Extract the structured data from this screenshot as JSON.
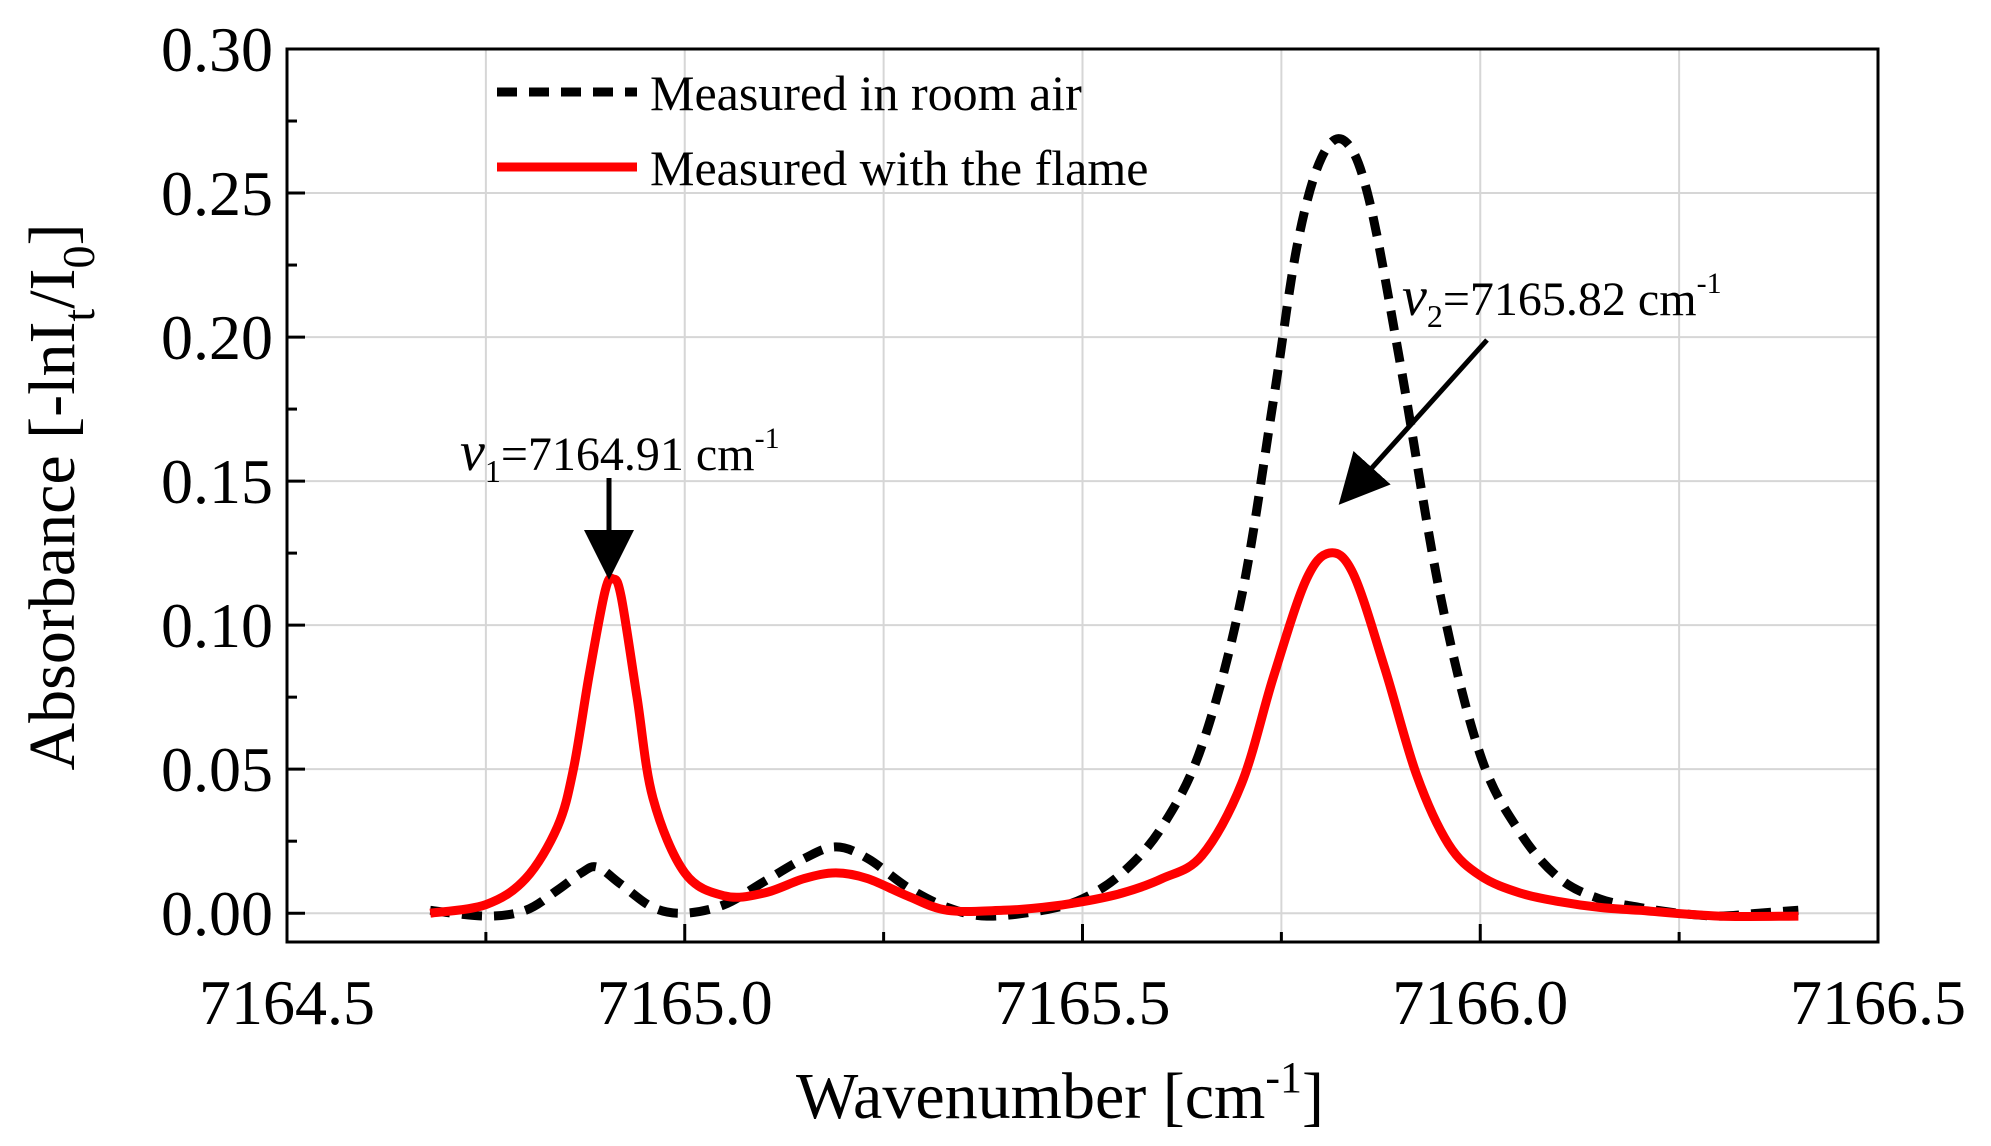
{
  "chart_data": {
    "type": "line",
    "title": "",
    "xlabel": "Wavenumber [cm",
    "xlabel_sup": "-1",
    "xlabel_end": "]",
    "ylabel_parts": [
      "Absorbance [-lnI",
      "t",
      "/I",
      "0",
      "]"
    ],
    "xlim": [
      7164.5,
      7166.5
    ],
    "ylim": [
      -0.01,
      0.3
    ],
    "x_ticks": [
      7164.5,
      7165.0,
      7165.5,
      7166.0,
      7166.5
    ],
    "x_tick_labels": [
      "7164.5",
      "7165.0",
      "7165.5",
      "7166.0",
      "7166.5"
    ],
    "y_ticks": [
      0.0,
      0.05,
      0.1,
      0.15,
      0.2,
      0.25,
      0.3
    ],
    "y_tick_labels": [
      "0.00",
      "0.05",
      "0.10",
      "0.15",
      "0.20",
      "0.25",
      "0.30"
    ],
    "grid": true,
    "legend_position": "top-center",
    "series": [
      {
        "name": "Measured in room air",
        "color": "#000000",
        "style": "dashed",
        "x": [
          7164.68,
          7164.75,
          7164.8,
          7164.84,
          7164.87,
          7164.89,
          7164.92,
          7164.96,
          7165.0,
          7165.05,
          7165.1,
          7165.15,
          7165.19,
          7165.23,
          7165.28,
          7165.33,
          7165.38,
          7165.45,
          7165.5,
          7165.55,
          7165.6,
          7165.65,
          7165.7,
          7165.74,
          7165.77,
          7165.8,
          7165.83,
          7165.86,
          7165.9,
          7165.95,
          7166.0,
          7166.05,
          7166.1,
          7166.15,
          7166.2,
          7166.25,
          7166.3,
          7166.35,
          7166.4
        ],
        "y": [
          0.001,
          -0.001,
          0.001,
          0.008,
          0.014,
          0.016,
          0.01,
          0.002,
          0.0,
          0.003,
          0.011,
          0.019,
          0.023,
          0.019,
          0.009,
          0.002,
          -0.001,
          0.001,
          0.005,
          0.014,
          0.03,
          0.058,
          0.11,
          0.178,
          0.232,
          0.262,
          0.268,
          0.248,
          0.19,
          0.11,
          0.055,
          0.028,
          0.012,
          0.005,
          0.002,
          0.0,
          -0.001,
          0.0,
          0.001
        ]
      },
      {
        "name": "Measured with the flame",
        "color": "#ff0000",
        "style": "solid",
        "x": [
          7164.68,
          7164.75,
          7164.8,
          7164.84,
          7164.86,
          7164.88,
          7164.9,
          7164.91,
          7164.92,
          7164.94,
          7164.96,
          7165.0,
          7165.05,
          7165.1,
          7165.15,
          7165.19,
          7165.23,
          7165.28,
          7165.33,
          7165.4,
          7165.45,
          7165.5,
          7165.55,
          7165.6,
          7165.65,
          7165.7,
          7165.74,
          7165.78,
          7165.81,
          7165.84,
          7165.88,
          7165.92,
          7165.96,
          7166.0,
          7166.05,
          7166.1,
          7166.15,
          7166.2,
          7166.3,
          7166.4
        ],
        "y": [
          0.0,
          0.003,
          0.012,
          0.03,
          0.05,
          0.083,
          0.112,
          0.116,
          0.11,
          0.075,
          0.04,
          0.014,
          0.006,
          0.007,
          0.012,
          0.014,
          0.012,
          0.006,
          0.001,
          0.001,
          0.002,
          0.004,
          0.007,
          0.012,
          0.02,
          0.045,
          0.082,
          0.115,
          0.125,
          0.118,
          0.085,
          0.048,
          0.024,
          0.013,
          0.007,
          0.004,
          0.002,
          0.001,
          -0.001,
          -0.001
        ]
      }
    ],
    "annotations": [
      {
        "label_symbol": "v",
        "label_sub": "1",
        "label_text": "=7164.91 cm",
        "label_sup": "-1",
        "target_x": 7164.91,
        "target_y": 0.119
      },
      {
        "label_symbol": "v",
        "label_sub": "2",
        "label_text": "=7165.82 cm",
        "label_sup": "-1",
        "target_x": 7165.84,
        "target_y": 0.144
      }
    ]
  }
}
